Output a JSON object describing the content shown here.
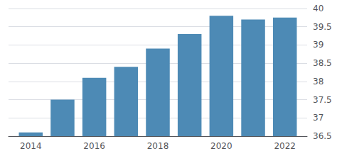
{
  "chart_data": {
    "type": "bar",
    "x": [
      2014,
      2015,
      2016,
      2017,
      2018,
      2019,
      2020,
      2021,
      2022
    ],
    "values": [
      36.6,
      37.5,
      38.1,
      38.4,
      38.9,
      39.3,
      39.8,
      39.7,
      39.75
    ],
    "color": "#4d8ab5",
    "xlim": [
      2013.3,
      2022.7
    ],
    "xticks": [
      2014,
      2016,
      2018,
      2020,
      2022
    ],
    "ylim": [
      36.5,
      40.0
    ],
    "yticks": [
      36.5,
      37,
      37.5,
      38,
      38.5,
      39,
      39.5,
      40
    ],
    "grid": true
  }
}
